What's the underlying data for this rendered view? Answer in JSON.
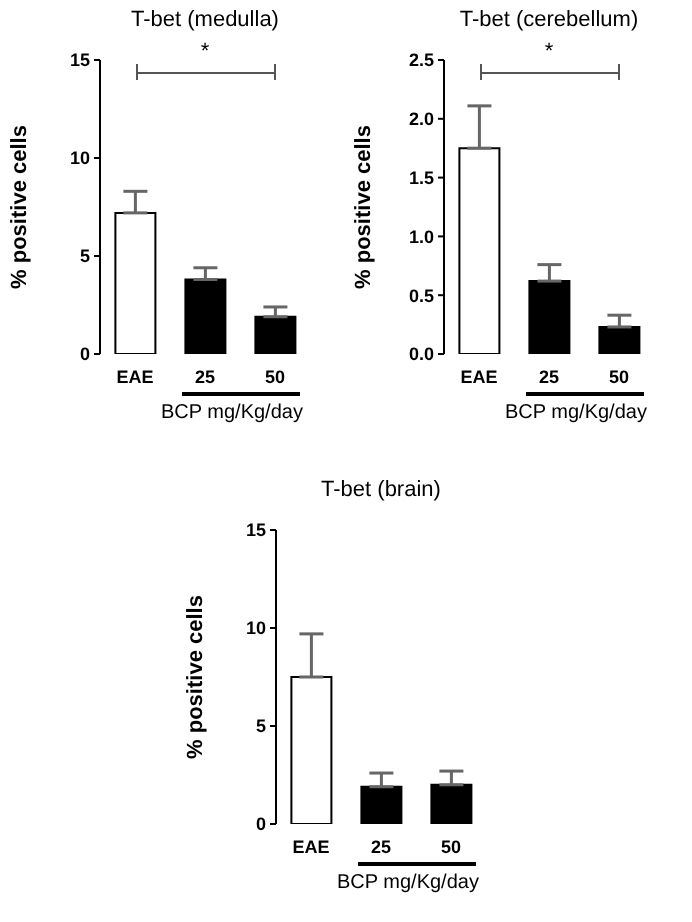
{
  "chart_data": [
    {
      "type": "bar",
      "title": "T-bet (medulla)",
      "ylabel": "% positive cells",
      "xlabel": "BCP mg/Kg/day",
      "categories": [
        "EAE",
        "25",
        "50"
      ],
      "values": [
        7.2,
        3.8,
        1.9
      ],
      "errors": [
        1.1,
        0.6,
        0.5
      ],
      "colors": [
        "#ffffff",
        "#000000",
        "#000000"
      ],
      "ylim": [
        0,
        15
      ],
      "yticks": [
        0,
        5,
        10,
        15
      ],
      "grid": false,
      "legend": false,
      "annotations": [
        "*"
      ]
    },
    {
      "type": "bar",
      "title": "T-bet (cerebellum)",
      "ylabel": "% positive cells",
      "xlabel": "BCP mg/Kg/day",
      "categories": [
        "EAE",
        "25",
        "50"
      ],
      "values": [
        1.75,
        0.62,
        0.23
      ],
      "errors": [
        0.36,
        0.14,
        0.1
      ],
      "colors": [
        "#ffffff",
        "#000000",
        "#000000"
      ],
      "ylim": [
        0,
        2.5
      ],
      "yticks": [
        {
          "value": 0,
          "label": "0.0"
        },
        {
          "value": 0.5,
          "label": "0.5"
        },
        {
          "value": 1,
          "label": "1.0"
        },
        {
          "value": 1.5,
          "label": "1.5"
        },
        {
          "value": 2,
          "label": "2.0"
        },
        {
          "value": 2.5,
          "label": "2.5"
        }
      ],
      "grid": false,
      "legend": false,
      "annotations": [
        "*"
      ]
    },
    {
      "type": "bar",
      "title": "T-bet (brain)",
      "ylabel": "% positive cells",
      "xlabel": "BCP mg/Kg/day",
      "categories": [
        "EAE",
        "25",
        "50"
      ],
      "values": [
        7.5,
        1.9,
        2.0
      ],
      "errors": [
        2.2,
        0.7,
        0.7
      ],
      "colors": [
        "#ffffff",
        "#000000",
        "#000000"
      ],
      "ylim": [
        0,
        15
      ],
      "yticks": [
        0,
        5,
        10,
        15
      ],
      "grid": false,
      "legend": false
    }
  ]
}
